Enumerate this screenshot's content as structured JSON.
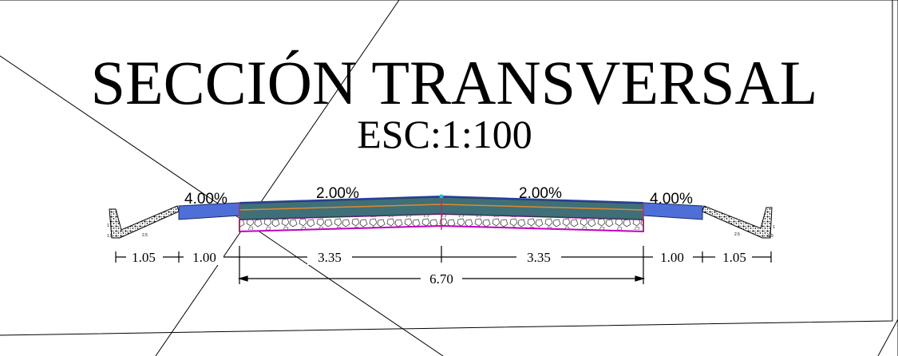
{
  "title": "SECCIÓN TRANSVERSAL",
  "scale": "ESC:1:100",
  "slopes": {
    "left_shoulder": "4.00%",
    "left_lane": "2.00%",
    "right_lane": "2.00%",
    "right_shoulder": "4.00%"
  },
  "dimensions": {
    "left_ditch": "1.05",
    "left_shoulder": "1.00",
    "left_lane": "3.35",
    "right_lane": "3.35",
    "right_shoulder": "1.00",
    "right_ditch": "1.05",
    "carriageway_total": "6.70"
  },
  "ditch_labels": {
    "left_a": "1",
    "left_b": "1.5",
    "left_c": "2.5",
    "right_a": "1",
    "right_b": "1.5",
    "right_c": "2.5"
  },
  "colors": {
    "asphalt": "#3f6f78",
    "shoulder": "#4f6fd8",
    "base_line": "#e08a2c",
    "subbase_outline": "#c000c0",
    "centerline": "#d02060",
    "frame": "#000000"
  }
}
